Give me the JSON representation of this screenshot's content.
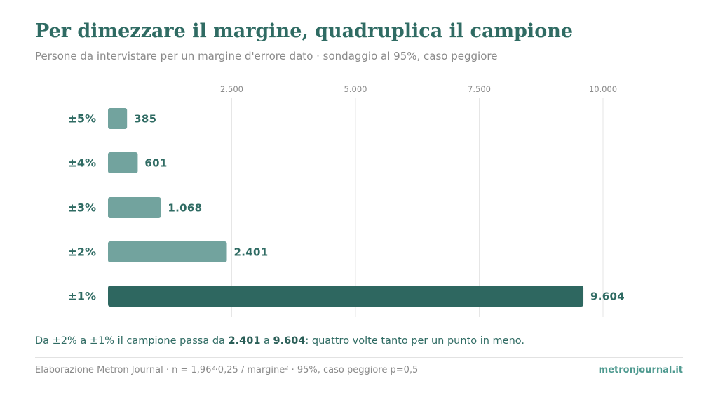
{
  "title": "Per dimezzare il margine, quadruplica il campione",
  "subtitle": "Persone da intervistare per un margine d'errore dato · sondaggio al 95%, caso peggiore",
  "note": {
    "prefix": "Da ±2% a ±1% il campione passa da ",
    "value_a": "2.401",
    "middle": " a ",
    "value_b": "9.604",
    "suffix": ": quattro volte tanto per un punto in meno."
  },
  "footer": {
    "source": "Elaborazione Metron Journal · n = 1,96²·0,25 / margine² · 95%, caso peggiore p=0,5",
    "brand": "metronjournal.it"
  },
  "colors": {
    "bar": "#72a39e",
    "bar_highlight": "#2e6760",
    "label": "#2f6b63",
    "grid": "#e6e6e6",
    "tick": "#8a8a8a"
  },
  "chart_data": {
    "type": "bar",
    "orientation": "horizontal",
    "categories": [
      "±5%",
      "±4%",
      "±3%",
      "±2%",
      "±1%"
    ],
    "values": [
      385,
      601,
      1068,
      2401,
      9604
    ],
    "value_labels": [
      "385",
      "601",
      "1.068",
      "2.401",
      "9.604"
    ],
    "highlight_index": 4,
    "xlim": [
      0,
      10000
    ],
    "xticks": [
      2500,
      5000,
      7500,
      10000
    ],
    "xtick_labels": [
      "2.500",
      "5.000",
      "7.500",
      "10.000"
    ],
    "xaxis_position": "top",
    "grid": true
  }
}
